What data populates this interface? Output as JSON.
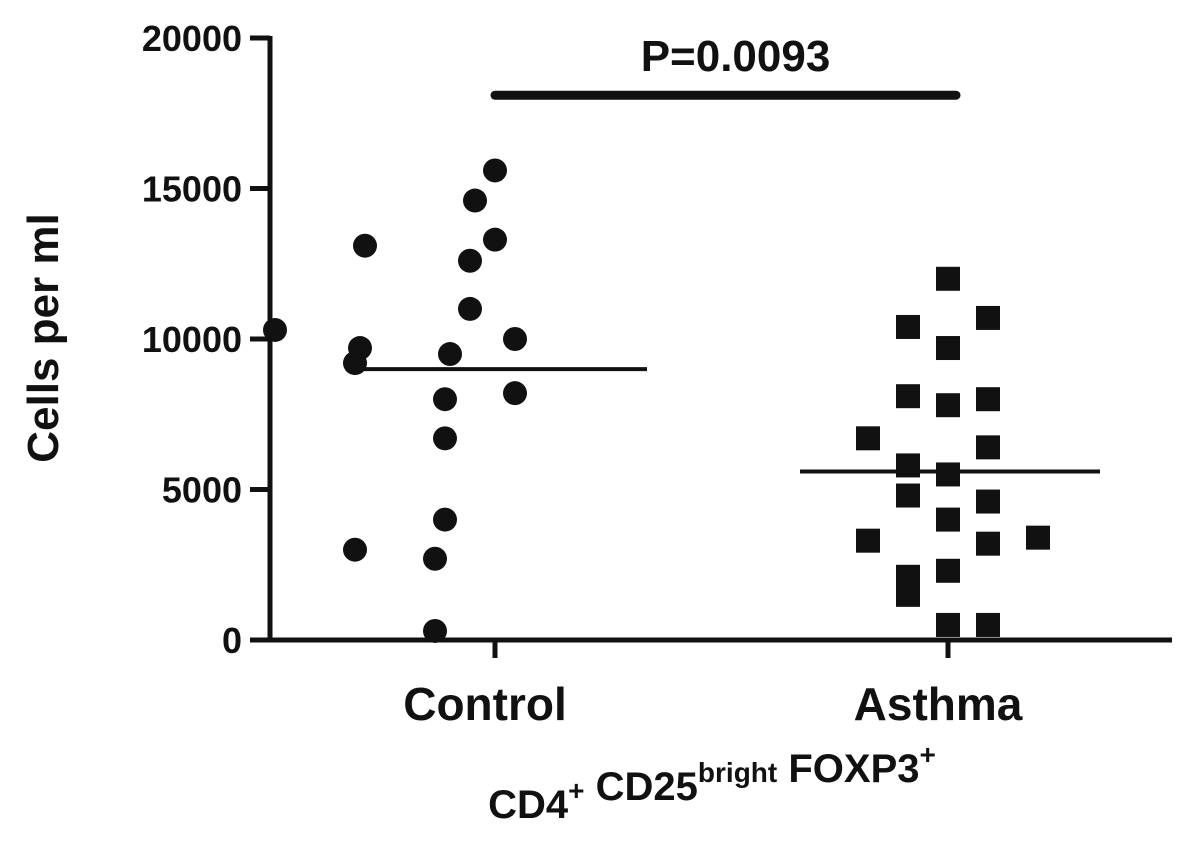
{
  "chart_data": {
    "type": "scatter",
    "ylabel": "Cells per ml",
    "ylim": [
      0,
      20000
    ],
    "yticks": [
      0,
      5000,
      10000,
      15000,
      20000
    ],
    "categories": [
      "Control",
      "Asthma"
    ],
    "xlabel": {
      "parts": [
        {
          "text": "CD4",
          "sup": "+"
        },
        {
          "text": " CD25",
          "sup": "bright"
        },
        {
          "text": " FOXP3",
          "sup": "+"
        }
      ]
    },
    "annotation": {
      "text": "P=0.0093",
      "between": [
        "Control",
        "Asthma"
      ],
      "y": 18100
    },
    "grid": false,
    "series": [
      {
        "category": "Control",
        "marker": "circle",
        "mean": 9000,
        "points": [
          {
            "offset": 0.0,
            "y": 15600
          },
          {
            "offset": -0.04,
            "y": 14600
          },
          {
            "offset": -0.26,
            "y": 13100
          },
          {
            "offset": 0.0,
            "y": 13300
          },
          {
            "offset": -0.05,
            "y": 12600
          },
          {
            "offset": -0.05,
            "y": 11000
          },
          {
            "offset": -0.44,
            "y": 10300
          },
          {
            "offset": 0.04,
            "y": 10000
          },
          {
            "offset": -0.27,
            "y": 9700
          },
          {
            "offset": -0.09,
            "y": 9500
          },
          {
            "offset": -0.28,
            "y": 9200
          },
          {
            "offset": 0.04,
            "y": 8200
          },
          {
            "offset": -0.1,
            "y": 8000
          },
          {
            "offset": -0.1,
            "y": 6700
          },
          {
            "offset": -0.1,
            "y": 4000
          },
          {
            "offset": -0.28,
            "y": 3000
          },
          {
            "offset": -0.12,
            "y": 2700
          },
          {
            "offset": -0.12,
            "y": 300
          }
        ]
      },
      {
        "category": "Asthma",
        "marker": "square",
        "mean": 5600,
        "points": [
          {
            "offset": 0.0,
            "y": 12000
          },
          {
            "offset": 0.08,
            "y": 10700
          },
          {
            "offset": -0.08,
            "y": 10400
          },
          {
            "offset": 0.0,
            "y": 9700
          },
          {
            "offset": -0.08,
            "y": 8100
          },
          {
            "offset": 0.08,
            "y": 8000
          },
          {
            "offset": 0.0,
            "y": 7800
          },
          {
            "offset": -0.16,
            "y": 6700
          },
          {
            "offset": 0.08,
            "y": 6400
          },
          {
            "offset": -0.08,
            "y": 5800
          },
          {
            "offset": 0.0,
            "y": 5500
          },
          {
            "offset": -0.08,
            "y": 4800
          },
          {
            "offset": 0.08,
            "y": 4600
          },
          {
            "offset": 0.0,
            "y": 4000
          },
          {
            "offset": -0.16,
            "y": 3300
          },
          {
            "offset": 0.18,
            "y": 3400
          },
          {
            "offset": 0.08,
            "y": 3200
          },
          {
            "offset": 0.0,
            "y": 2300
          },
          {
            "offset": -0.08,
            "y": 2100
          },
          {
            "offset": -0.08,
            "y": 1500
          },
          {
            "offset": 0.0,
            "y": 500
          },
          {
            "offset": 0.08,
            "y": 500
          }
        ]
      }
    ]
  }
}
